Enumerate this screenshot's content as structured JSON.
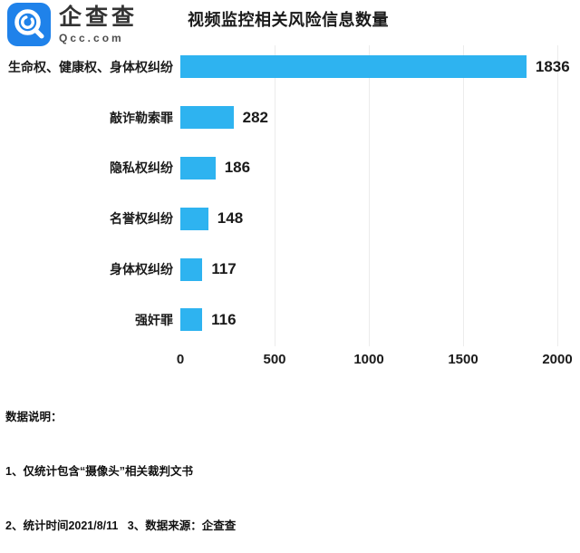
{
  "brand": {
    "name": "企查查",
    "domain": "Qcc.com",
    "logo_color": "#1F82EA"
  },
  "header": {
    "title": "视频监控相关风险信息数量"
  },
  "chart_data": {
    "type": "bar",
    "orientation": "horizontal",
    "title": "视频监控相关风险信息数量",
    "categories": [
      "生命权、健康权、身体权纠纷",
      "敲诈勒索罪",
      "隐私权纠纷",
      "名誉权纠纷",
      "身体权纠纷",
      "强奸罪"
    ],
    "values": [
      1836,
      282,
      186,
      148,
      117,
      116
    ],
    "xlim": [
      0,
      2000
    ],
    "x_ticks": [
      "0",
      "500",
      "1000",
      "1500",
      "2000"
    ],
    "grid": true,
    "legend_position": "none",
    "value_labels": true,
    "bar_color": "#2EB3F0"
  },
  "notes": {
    "heading": "数据说明：",
    "lines": [
      "1、仅统计包含“摄像头”相关裁判文书",
      "2、统计时间2021/8/11   3、数据来源：企查查"
    ]
  },
  "colors": {
    "bar": "#2EB3F0",
    "logo_blue": "#1F82EA",
    "gridline": "#ececec",
    "text": "#1a1a1a"
  }
}
